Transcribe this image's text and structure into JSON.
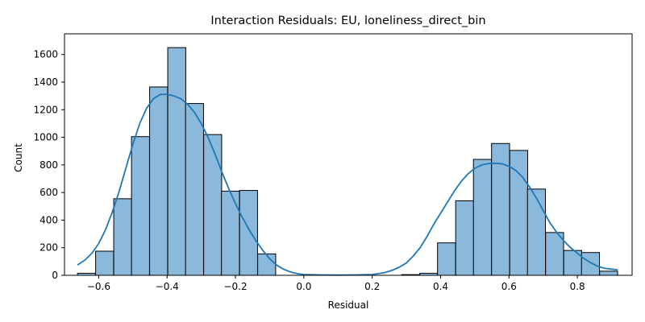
{
  "chart_data": {
    "type": "bar",
    "title": "Interaction Residuals: EU, loneliness_direct_bin",
    "xlabel": "Residual",
    "ylabel": "Count",
    "xlim": [
      -0.7,
      0.96
    ],
    "ylim": [
      0,
      1750
    ],
    "x_ticks": [
      -0.6,
      -0.4,
      -0.2,
      0.0,
      0.2,
      0.4,
      0.6,
      0.8
    ],
    "x_tick_labels": [
      "−0.6",
      "−0.4",
      "−0.2",
      "0.0",
      "0.2",
      "0.4",
      "0.6",
      "0.8"
    ],
    "y_ticks": [
      0,
      200,
      400,
      600,
      800,
      1000,
      1200,
      1400,
      1600
    ],
    "y_tick_labels": [
      "0",
      "200",
      "400",
      "600",
      "800",
      "1000",
      "1200",
      "1400",
      "1600"
    ],
    "bin_width": 0.0526,
    "bins_left": [
      -0.662,
      -0.609,
      -0.556,
      -0.504,
      -0.451,
      -0.398,
      -0.346,
      -0.293,
      -0.241,
      -0.188,
      -0.135,
      0.286,
      0.339,
      0.391,
      0.444,
      0.496,
      0.549,
      0.602,
      0.654,
      0.707,
      0.76,
      0.812,
      0.865
    ],
    "values": [
      15,
      175,
      555,
      1005,
      1365,
      1650,
      1245,
      1020,
      610,
      615,
      155,
      5,
      15,
      235,
      540,
      840,
      955,
      905,
      625,
      310,
      180,
      165,
      30
    ],
    "kde": {
      "x": [
        -0.662,
        -0.64,
        -0.62,
        -0.6,
        -0.58,
        -0.56,
        -0.54,
        -0.52,
        -0.5,
        -0.48,
        -0.46,
        -0.44,
        -0.42,
        -0.4,
        -0.38,
        -0.36,
        -0.34,
        -0.32,
        -0.3,
        -0.28,
        -0.26,
        -0.24,
        -0.22,
        -0.2,
        -0.18,
        -0.16,
        -0.14,
        -0.12,
        -0.1,
        -0.08,
        -0.06,
        -0.04,
        -0.02,
        0.0,
        0.05,
        0.1,
        0.15,
        0.2,
        0.22,
        0.24,
        0.26,
        0.28,
        0.3,
        0.32,
        0.34,
        0.36,
        0.38,
        0.4,
        0.42,
        0.44,
        0.46,
        0.48,
        0.5,
        0.52,
        0.54,
        0.56,
        0.58,
        0.6,
        0.62,
        0.64,
        0.66,
        0.68,
        0.7,
        0.72,
        0.74,
        0.76,
        0.78,
        0.8,
        0.82,
        0.84,
        0.86,
        0.88,
        0.9,
        0.918
      ],
      "y": [
        75,
        110,
        160,
        230,
        330,
        460,
        610,
        780,
        950,
        1100,
        1210,
        1280,
        1310,
        1312,
        1300,
        1280,
        1240,
        1180,
        1100,
        1000,
        880,
        750,
        630,
        520,
        420,
        330,
        250,
        180,
        120,
        75,
        45,
        25,
        12,
        6,
        3,
        2,
        3,
        6,
        12,
        22,
        38,
        60,
        90,
        140,
        200,
        280,
        370,
        450,
        530,
        610,
        680,
        735,
        775,
        800,
        810,
        812,
        808,
        790,
        760,
        710,
        640,
        560,
        470,
        380,
        310,
        250,
        200,
        160,
        120,
        90,
        65,
        50,
        45,
        40
      ]
    },
    "bar_color": "#8ab9dc",
    "bar_edge_color": "#000000",
    "kde_color": "#1f77b4",
    "grid": false,
    "legend": "none"
  }
}
